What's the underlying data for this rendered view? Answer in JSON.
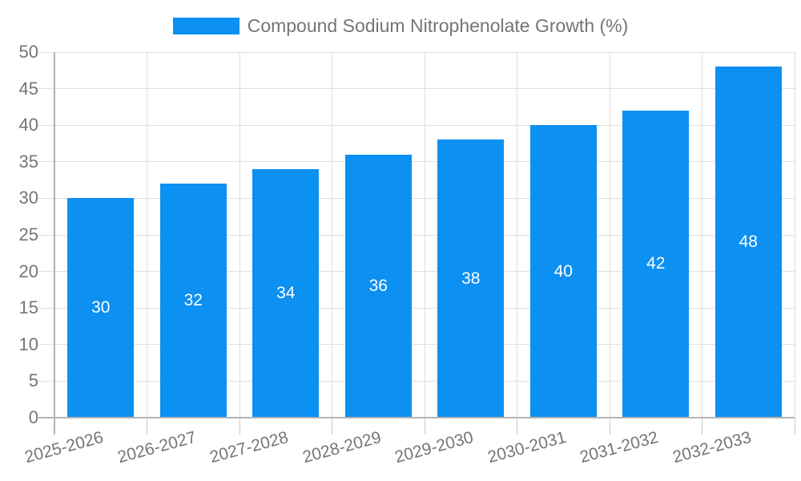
{
  "legend": {
    "label": "Compound Sodium Nitrophenolate Growth (%)"
  },
  "colors": {
    "bar": "#0c90f2",
    "grid": "#e0e0e0",
    "axis": "#b3b3b3",
    "tick": "#c9c9c9",
    "axis_text": "#757575",
    "bar_value_text": "#ffffff",
    "background": "#ffffff"
  },
  "chart_data": {
    "type": "bar",
    "title": "Compound Sodium Nitrophenolate Growth (%)",
    "categories": [
      "2025-2026",
      "2026-2027",
      "2027-2028",
      "2028-2029",
      "2029-2030",
      "2030-2031",
      "2031-2032",
      "2032-2033"
    ],
    "values": [
      30,
      32,
      34,
      36,
      38,
      40,
      42,
      48
    ],
    "xlabel": "",
    "ylabel": "",
    "ylim": [
      0,
      50
    ],
    "yticks": [
      0,
      5,
      10,
      15,
      20,
      25,
      30,
      35,
      40,
      45,
      50
    ],
    "grid": true,
    "legend_position": "top-center",
    "value_labels": "inside-center",
    "xtick_rotation_deg": -15
  }
}
